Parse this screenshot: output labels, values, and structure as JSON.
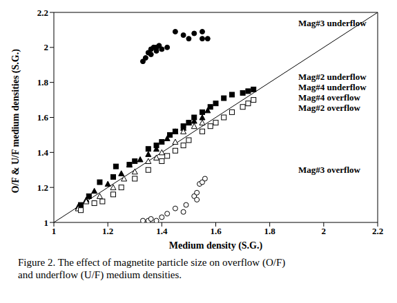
{
  "chart_data": {
    "type": "scatter",
    "caption": "Figure 2.  The effect of magnetite particle size on overflow (O/F) and underflow (U/F) medium densities.",
    "x_label": "Medium density (S.G.)",
    "y_label": "O/F & U/F medium densities (S.G.)",
    "xlim": [
      1,
      2.2
    ],
    "ylim": [
      1,
      2.2
    ],
    "xticks": [
      1,
      1.2,
      1.4,
      1.6,
      1.8,
      2,
      2.2
    ],
    "yticks": [
      1,
      1.2,
      1.4,
      1.6,
      1.8,
      2,
      2.2
    ],
    "grid": false,
    "diagonal": {
      "x": [
        1,
        2.2
      ],
      "y": [
        1,
        2.2
      ]
    },
    "series": [
      {
        "name": "Mag#3 underflow",
        "color": "#000000",
        "marker": "circle",
        "x": [
          1.33,
          1.34,
          1.35,
          1.36,
          1.36,
          1.37,
          1.38,
          1.38,
          1.39,
          1.4,
          1.42,
          1.45,
          1.48,
          1.5,
          1.52,
          1.55,
          1.55,
          1.57
        ],
        "values": [
          1.92,
          1.94,
          1.97,
          1.96,
          1.99,
          2.0,
          1.98,
          2.0,
          2.01,
          1.99,
          2.0,
          2.09,
          2.07,
          2.05,
          2.08,
          2.05,
          2.09,
          2.05
        ]
      },
      {
        "name": "Mag#2 underflow",
        "color": "#000000",
        "marker": "square",
        "x": [
          1.1,
          1.13,
          1.17,
          1.22,
          1.23,
          1.28,
          1.3,
          1.35,
          1.38,
          1.4,
          1.43,
          1.45,
          1.48,
          1.5,
          1.52,
          1.55,
          1.58,
          1.6,
          1.63,
          1.66,
          1.7,
          1.72,
          1.74
        ],
        "values": [
          1.1,
          1.15,
          1.23,
          1.26,
          1.32,
          1.33,
          1.35,
          1.42,
          1.44,
          1.46,
          1.5,
          1.52,
          1.55,
          1.57,
          1.6,
          1.63,
          1.66,
          1.68,
          1.71,
          1.73,
          1.74,
          1.75,
          1.76
        ]
      },
      {
        "name": "Mag#4 underflow",
        "color": "#000000",
        "marker": "triangle",
        "x": [
          1.09,
          1.12,
          1.15,
          1.2,
          1.25,
          1.28,
          1.32,
          1.35,
          1.38,
          1.42,
          1.45,
          1.48,
          1.5,
          1.52,
          1.55,
          1.57
        ],
        "values": [
          1.09,
          1.13,
          1.18,
          1.22,
          1.28,
          1.33,
          1.36,
          1.39,
          1.42,
          1.48,
          1.52,
          1.54,
          1.57,
          1.58,
          1.6,
          1.64
        ]
      },
      {
        "name": "Mag#4 overflow",
        "color": "#000000",
        "marker": "triangle_open",
        "x": [
          1.09,
          1.12,
          1.17,
          1.22,
          1.26,
          1.3,
          1.35,
          1.38,
          1.4,
          1.45,
          1.48,
          1.52,
          1.55
        ],
        "values": [
          1.08,
          1.12,
          1.15,
          1.2,
          1.25,
          1.29,
          1.35,
          1.37,
          1.4,
          1.46,
          1.52,
          1.55,
          1.57
        ]
      },
      {
        "name": "Mag#2 overflow",
        "color": "#000000",
        "marker": "square_open",
        "x": [
          1.1,
          1.15,
          1.18,
          1.22,
          1.25,
          1.3,
          1.35,
          1.4,
          1.42,
          1.45,
          1.48,
          1.5,
          1.55,
          1.58,
          1.6,
          1.63,
          1.66,
          1.7,
          1.72,
          1.74
        ],
        "values": [
          1.07,
          1.11,
          1.12,
          1.16,
          1.2,
          1.25,
          1.3,
          1.35,
          1.38,
          1.41,
          1.44,
          1.47,
          1.52,
          1.55,
          1.57,
          1.6,
          1.63,
          1.66,
          1.68,
          1.7
        ]
      },
      {
        "name": "Mag#3 overflow",
        "color": "#000000",
        "marker": "circle_open",
        "x": [
          1.33,
          1.35,
          1.36,
          1.38,
          1.4,
          1.42,
          1.45,
          1.48,
          1.49,
          1.52,
          1.53,
          1.53,
          1.54,
          1.55,
          1.56
        ],
        "values": [
          1.01,
          1.01,
          1.02,
          1.01,
          1.03,
          1.05,
          1.08,
          1.06,
          1.1,
          1.15,
          1.13,
          1.17,
          1.22,
          1.23,
          1.25
        ]
      }
    ]
  }
}
